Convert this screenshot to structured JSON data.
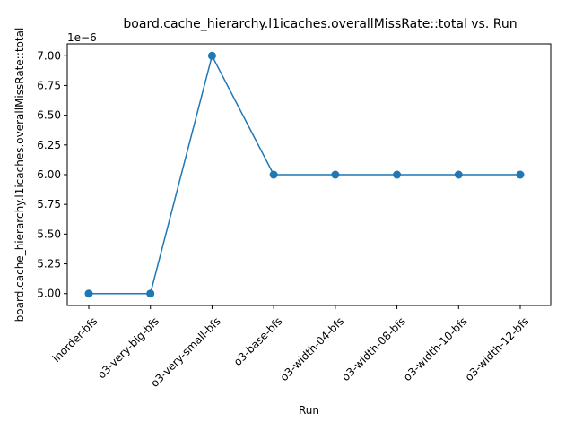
{
  "chart_data": {
    "type": "line",
    "title": "board.cache_hierarchy.l1icaches.overallMissRate::total vs. Run",
    "xlabel": "Run",
    "ylabel": "board.cache_hierarchy.l1icaches.overallMissRate::total",
    "offset_text": "1e−6",
    "categories": [
      "inorder-bfs",
      "o3-very-big-bfs",
      "o3-very-small-bfs",
      "o3-base-bfs",
      "o3-width-04-bfs",
      "o3-width-08-bfs",
      "o3-width-10-bfs",
      "o3-width-12-bfs"
    ],
    "values": [
      5.0,
      5.0,
      7.0,
      6.0,
      6.0,
      6.0,
      6.0,
      6.0
    ],
    "value_scale": 1e-06,
    "ylim": [
      4.9,
      7.1
    ],
    "yticks": [
      5.0,
      5.25,
      5.5,
      5.75,
      6.0,
      6.25,
      6.5,
      6.75,
      7.0
    ],
    "ytick_labels": [
      "5.00",
      "5.25",
      "5.50",
      "5.75",
      "6.00",
      "6.25",
      "6.50",
      "6.75",
      "7.00"
    ],
    "grid": false,
    "legend": "none",
    "line_color": "#1f77b4",
    "marker": "circle"
  }
}
